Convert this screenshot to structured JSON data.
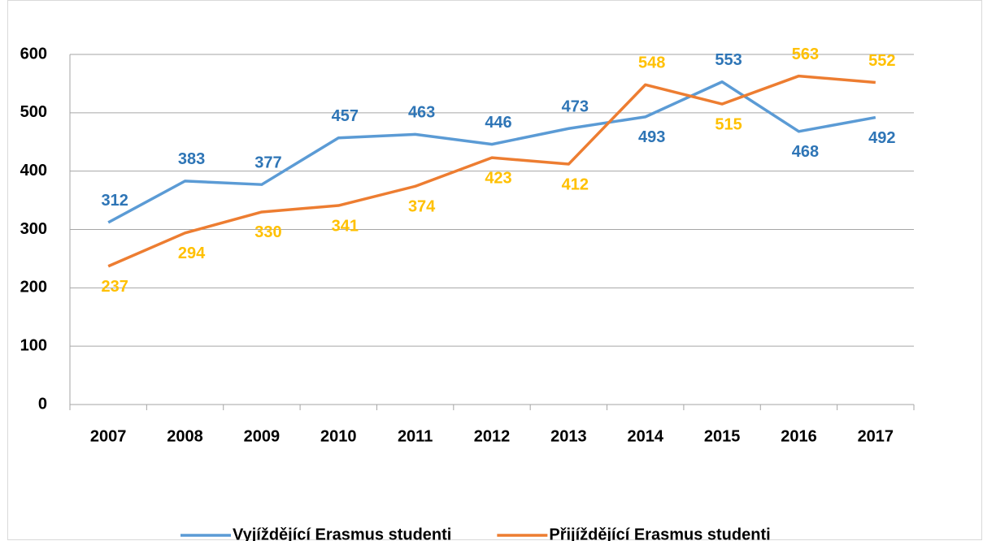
{
  "chart_data": {
    "type": "line",
    "categories": [
      "2007",
      "2008",
      "2009",
      "2010",
      "2011",
      "2012",
      "2013",
      "2014",
      "2015",
      "2016",
      "2017"
    ],
    "series": [
      {
        "name": "Vyjíždějící Erasmus studenti",
        "color": "#5b9bd5",
        "label_color": "#2e75b6",
        "values": [
          312,
          383,
          377,
          457,
          463,
          446,
          473,
          493,
          553,
          468,
          492
        ]
      },
      {
        "name": "Přijíždějící Erasmus studenti",
        "color": "#ed7d31",
        "label_color": "#ffc000",
        "values": [
          237,
          294,
          330,
          341,
          374,
          423,
          412,
          548,
          515,
          563,
          552
        ]
      }
    ],
    "ylim": [
      0,
      600
    ],
    "yticks": [
      0,
      100,
      200,
      300,
      400,
      500,
      600
    ],
    "grid": true,
    "legend": "bottom"
  }
}
